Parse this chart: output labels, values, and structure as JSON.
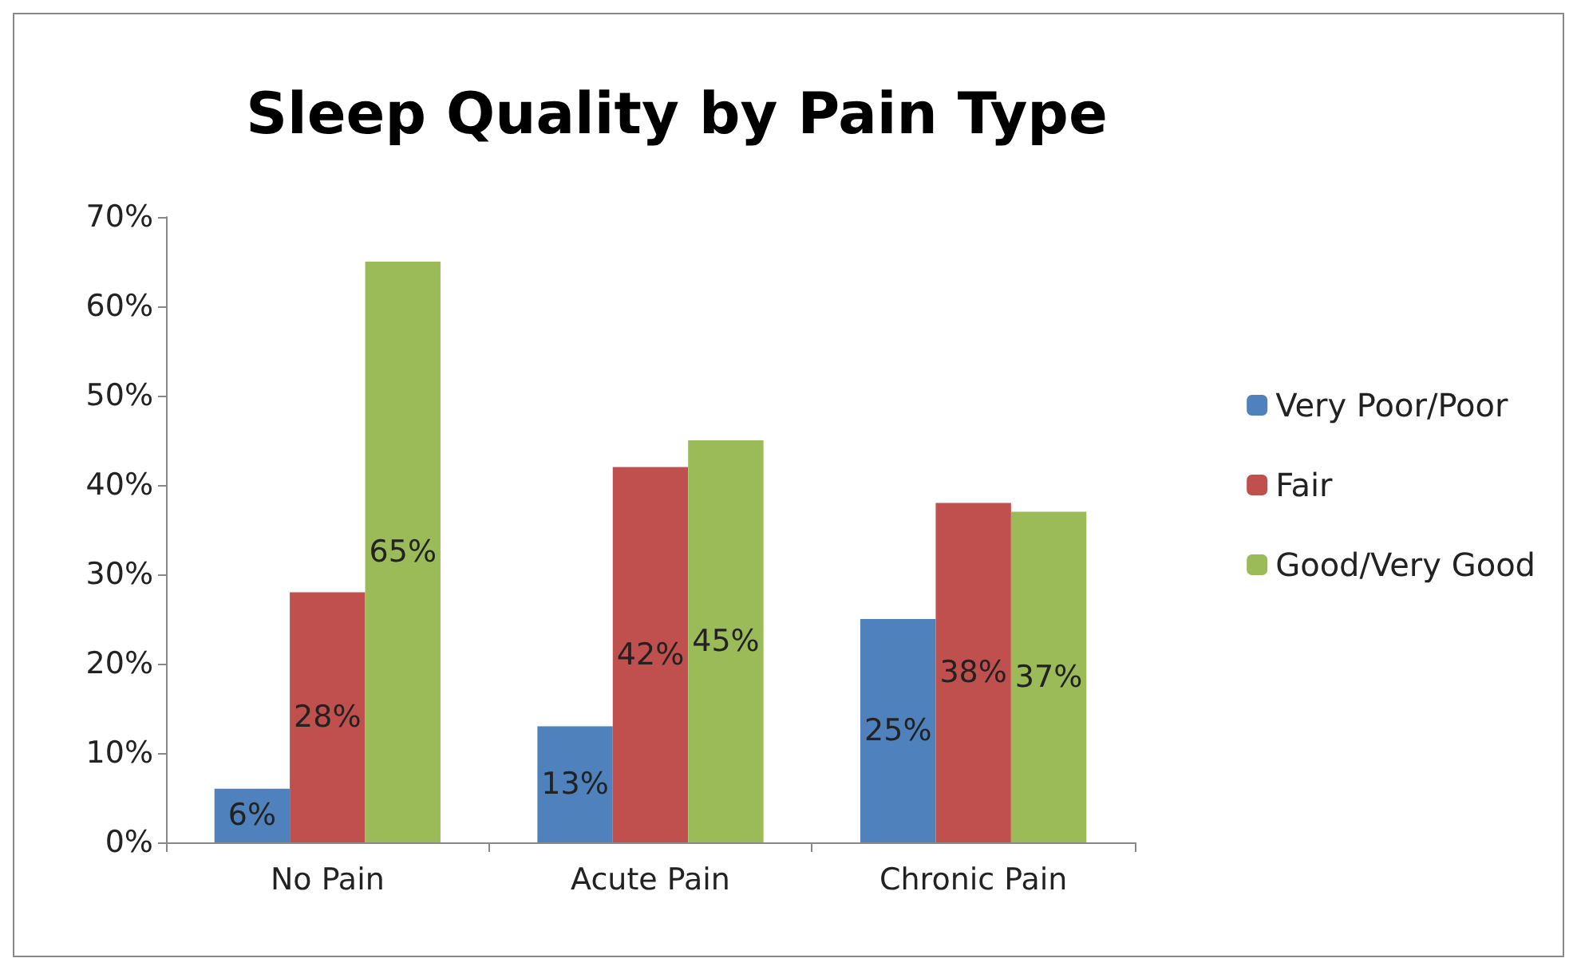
{
  "chart_data": {
    "type": "bar",
    "title": "Sleep Quality by Pain Type",
    "categories": [
      "No Pain",
      "Acute Pain",
      "Chronic Pain"
    ],
    "series": [
      {
        "name": "Very Poor/Poor",
        "color": "#4f81bd",
        "values": [
          6,
          13,
          25
        ],
        "value_labels": [
          "6%",
          "13%",
          "25%"
        ]
      },
      {
        "name": "Fair",
        "color": "#c0504d",
        "values": [
          28,
          42,
          38
        ],
        "value_labels": [
          "28%",
          "42%",
          "38%"
        ]
      },
      {
        "name": "Good/Very Good",
        "color": "#9bbb59",
        "values": [
          65,
          45,
          37
        ],
        "value_labels": [
          "65%",
          "45%",
          "37%"
        ]
      }
    ],
    "ylim": [
      0,
      70
    ],
    "yticks": [
      {
        "value": 0,
        "label": "0%"
      },
      {
        "value": 10,
        "label": "10%"
      },
      {
        "value": 20,
        "label": "20%"
      },
      {
        "value": 30,
        "label": "30%"
      },
      {
        "value": 40,
        "label": "40%"
      },
      {
        "value": 50,
        "label": "50%"
      },
      {
        "value": 60,
        "label": "60%"
      },
      {
        "value": 70,
        "label": "70%"
      }
    ],
    "grid": false,
    "legend": "right"
  }
}
